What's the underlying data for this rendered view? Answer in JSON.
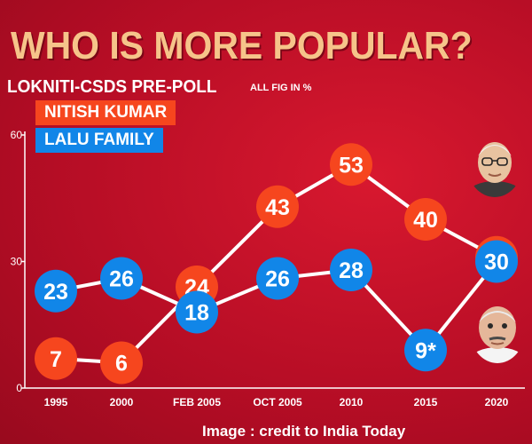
{
  "header": {
    "title": "WHO IS MORE POPULAR?",
    "subtitle": "LOKNITI-CSDS PRE-POLL",
    "note": "ALL FIG IN %"
  },
  "credit": "Image : credit to India Today",
  "colors": {
    "background": "#c8102e",
    "nitish": "#f6461e",
    "lalu": "#1186e8",
    "title": "#f6c48a",
    "line": "#ffffff"
  },
  "chart_data": {
    "type": "line",
    "categories": [
      "1995",
      "2000",
      "FEB 2005",
      "OCT 2005",
      "2010",
      "2015",
      "2020"
    ],
    "ylim": [
      0,
      60
    ],
    "yticks": [
      "0",
      "30",
      "60"
    ],
    "series": [
      {
        "name": "NITISH KUMAR",
        "values": [
          7,
          6,
          24,
          43,
          53,
          40,
          31
        ],
        "labels": [
          "7",
          "6",
          "24",
          "43",
          "53",
          "40",
          "31"
        ]
      },
      {
        "name": "LALU FAMILY",
        "values": [
          23,
          26,
          18,
          26,
          28,
          9,
          30
        ],
        "labels": [
          "23",
          "26",
          "18",
          "26",
          "28",
          "9*",
          "30"
        ]
      }
    ],
    "grid": false,
    "legend": "top-left"
  }
}
